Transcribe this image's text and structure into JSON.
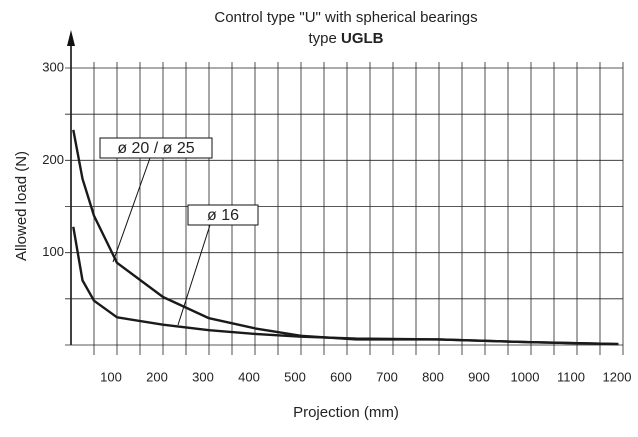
{
  "chart_data": {
    "type": "line",
    "title": "Control type \"U\" with spherical bearings",
    "subtitle": [
      "type",
      "UGLB"
    ],
    "x_label": "Projection (mm)",
    "y_label": "Allowed load (N)",
    "xlim": [
      0,
      1200
    ],
    "ylim": [
      0,
      300
    ],
    "xticks": [
      100,
      200,
      300,
      400,
      500,
      600,
      700,
      800,
      900,
      1000,
      1100,
      1200
    ],
    "yticks": [
      100,
      200,
      300
    ],
    "xgrid": [
      50,
      100,
      150,
      200,
      250,
      300,
      350,
      400,
      450,
      500,
      550,
      600,
      650,
      700,
      750,
      800,
      850,
      900,
      950,
      1000,
      1050,
      1100,
      1150,
      1200
    ],
    "ygrid": [
      0,
      50,
      100,
      150,
      200,
      250,
      300
    ],
    "x": [
      5,
      25,
      50,
      100,
      200,
      300,
      400,
      500,
      620,
      800,
      1000,
      1190
    ],
    "series": [
      {
        "name": "ø 20 / ø 25",
        "color": "#1a1a1a",
        "values": [
          233,
          180,
          140,
          89,
          52,
          29,
          18,
          10,
          6,
          6,
          3,
          1
        ]
      },
      {
        "name": "ø 16",
        "color": "#1a1a1a",
        "values": [
          128,
          70,
          48,
          30,
          22,
          16,
          12,
          9,
          7,
          6,
          3,
          1
        ]
      }
    ]
  }
}
